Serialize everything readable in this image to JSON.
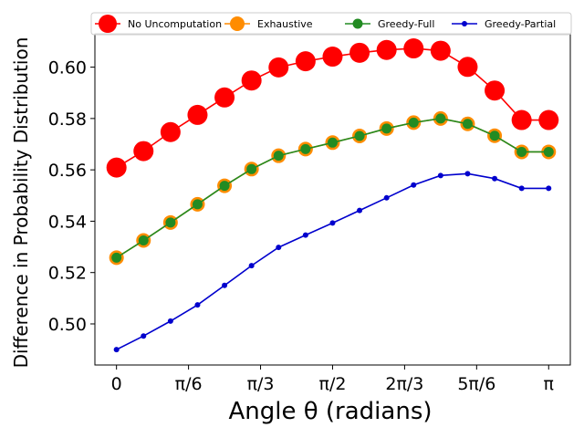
{
  "chart_data": {
    "type": "line",
    "title": "",
    "xlabel": "Angle θ (radians)",
    "ylabel": "Difference in Probability Distribution",
    "xlim": [
      -0.157,
      3.299
    ],
    "ylim": [
      0.484,
      0.613
    ],
    "grid": false,
    "legend_position": "top",
    "x": [
      0,
      0.1963,
      0.3927,
      0.589,
      0.7854,
      0.9817,
      1.1781,
      1.3744,
      1.5708,
      1.7671,
      1.9635,
      2.1598,
      2.3562,
      2.5525,
      2.7489,
      2.9452,
      3.1416
    ],
    "x_ticks": [
      {
        "value": 0,
        "label": "0"
      },
      {
        "value": 0.5236,
        "label": "π/6"
      },
      {
        "value": 1.0472,
        "label": "π/3"
      },
      {
        "value": 1.5708,
        "label": "π/2"
      },
      {
        "value": 2.0944,
        "label": "2π/3"
      },
      {
        "value": 2.618,
        "label": "5π/6"
      },
      {
        "value": 3.1416,
        "label": "π"
      }
    ],
    "y_ticks": [
      {
        "value": 0.5,
        "label": "0.50"
      },
      {
        "value": 0.52,
        "label": "0.52"
      },
      {
        "value": 0.54,
        "label": "0.54"
      },
      {
        "value": 0.56,
        "label": "0.56"
      },
      {
        "value": 0.58,
        "label": "0.58"
      },
      {
        "value": 0.6,
        "label": "0.60"
      }
    ],
    "series": [
      {
        "name": "No Uncomputation",
        "color": "#ff0000",
        "values": [
          0.5609,
          0.5673,
          0.5747,
          0.5814,
          0.5882,
          0.5948,
          0.5999,
          0.6023,
          0.6041,
          0.6056,
          0.6067,
          0.6073,
          0.6064,
          0.6001,
          0.5909,
          0.5794,
          0.5794
        ]
      },
      {
        "name": "Exhaustive",
        "color": "#ff8c00",
        "values": [
          0.5258,
          0.5325,
          0.5395,
          0.5466,
          0.5538,
          0.5603,
          0.5655,
          0.5681,
          0.5706,
          0.5732,
          0.5761,
          0.5784,
          0.58,
          0.5779,
          0.5733,
          0.567,
          0.567
        ]
      },
      {
        "name": "Greedy-Full",
        "color": "#228b22",
        "values": [
          0.5258,
          0.5325,
          0.5395,
          0.5466,
          0.5538,
          0.5603,
          0.5655,
          0.5681,
          0.5706,
          0.5732,
          0.5761,
          0.5784,
          0.58,
          0.5779,
          0.5733,
          0.567,
          0.567
        ]
      },
      {
        "name": "Greedy-Partial",
        "color": "#0000cd",
        "values": [
          0.49,
          0.4953,
          0.5011,
          0.5074,
          0.515,
          0.5227,
          0.5298,
          0.5346,
          0.5393,
          0.5442,
          0.5491,
          0.5541,
          0.5578,
          0.5585,
          0.5566,
          0.5528,
          0.5528
        ]
      }
    ]
  }
}
